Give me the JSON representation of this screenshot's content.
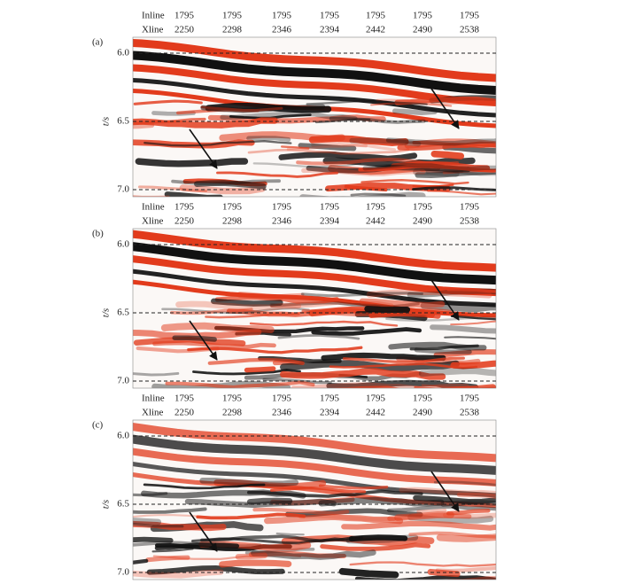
{
  "panels": [
    {
      "label": "(a)",
      "inline_label": "Inline",
      "xline_label": "Xline",
      "inline": [
        "1795",
        "1795",
        "1795",
        "1795",
        "1795",
        "1795",
        "1795"
      ],
      "xline": [
        "2250",
        "2298",
        "2346",
        "2394",
        "2442",
        "2490",
        "2538"
      ],
      "y_axis_label": "t/s",
      "y_ticks": [
        "6.0",
        "6.5",
        "7.0"
      ]
    },
    {
      "label": "(b)",
      "inline_label": "Inline",
      "xline_label": "Xline",
      "inline": [
        "1795",
        "1795",
        "1795",
        "1795",
        "1795",
        "1795",
        "1795"
      ],
      "xline": [
        "2250",
        "2298",
        "2346",
        "2394",
        "2442",
        "2490",
        "2538"
      ],
      "y_axis_label": "t/s",
      "y_ticks": [
        "6.0",
        "6.5",
        "7.0"
      ]
    },
    {
      "label": "(c)",
      "inline_label": "Inline",
      "xline_label": "Xline",
      "inline": [
        "1795",
        "1795",
        "1795",
        "1795",
        "1795",
        "1795",
        "1795"
      ],
      "xline": [
        "2250",
        "2298",
        "2346",
        "2394",
        "2442",
        "2490",
        "2538"
      ],
      "y_axis_label": "t/s",
      "y_ticks": [
        "6.0",
        "6.5",
        "7.0"
      ]
    }
  ]
}
